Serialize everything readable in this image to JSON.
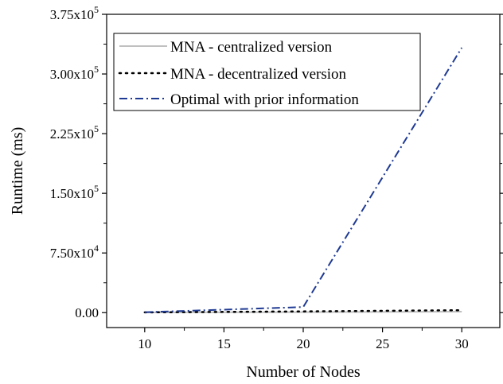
{
  "chart_data": {
    "type": "line",
    "xlabel": "Number of Nodes",
    "ylabel": "Runtime (ms)",
    "xlim": [
      7.6,
      32.4
    ],
    "ylim": [
      -18750,
      375000
    ],
    "x_ticks": [
      10,
      15,
      20,
      25,
      30
    ],
    "x_tick_labels": [
      "10",
      "15",
      "20",
      "25",
      "30"
    ],
    "y_ticks": [
      0,
      75000,
      150000,
      225000,
      300000,
      375000
    ],
    "y_tick_labels": [
      {
        "mantissa": "0.00",
        "exp": ""
      },
      {
        "mantissa": "7.50x10",
        "exp": "4"
      },
      {
        "mantissa": "1.50x10",
        "exp": "5"
      },
      {
        "mantissa": "2.25x10",
        "exp": "5"
      },
      {
        "mantissa": "3.00x10",
        "exp": "5"
      },
      {
        "mantissa": "3.75x10",
        "exp": "5"
      }
    ],
    "grid": false,
    "legend_position": "top-left",
    "series": [
      {
        "name": "MNA - centralized version",
        "color": "#c0c0c0",
        "style": "solid",
        "x": [
          10,
          20,
          30
        ],
        "y": [
          200,
          600,
          1200
        ]
      },
      {
        "name": "MNA - decentralized version",
        "color": "#000000",
        "style": "dotted",
        "x": [
          10,
          20,
          30
        ],
        "y": [
          300,
          1500,
          3000
        ]
      },
      {
        "name": "Optimal with prior information",
        "color": "#1f3a93",
        "style": "dashdot",
        "x": [
          10,
          20,
          30
        ],
        "y": [
          500,
          7000,
          333000
        ]
      }
    ]
  }
}
